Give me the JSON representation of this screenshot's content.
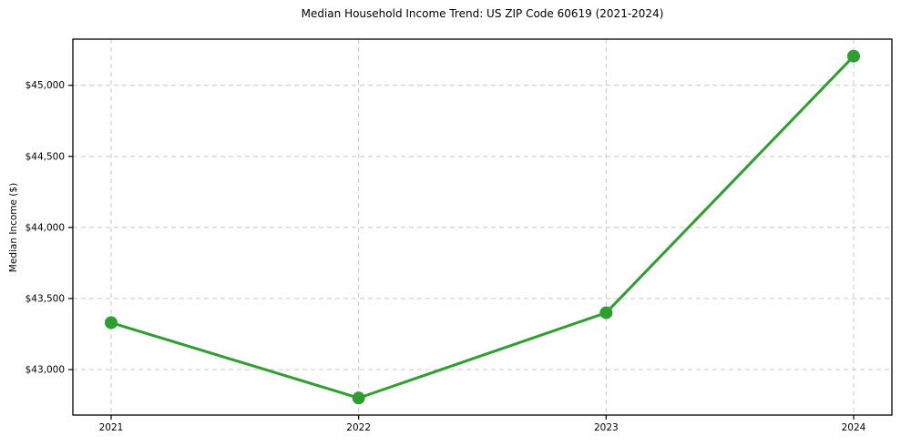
{
  "page": {
    "title": "Median Household Income Trend: US ZIP Code 60619 (2021-2024)"
  },
  "chart_data": {
    "type": "line",
    "title": "Median Household Income Trend: US ZIP Code 60619 (2021-2024)",
    "xlabel": "",
    "ylabel": "Median Income ($)",
    "categories": [
      "2021",
      "2022",
      "2023",
      "2024"
    ],
    "series": [
      {
        "values": [
          43330,
          42800,
          43400,
          45205
        ],
        "color": "#2ca02c",
        "marker": "circle"
      }
    ],
    "yticks": {
      "values": [
        43000,
        43500,
        44000,
        44500,
        45000
      ],
      "labels": [
        "$43,000",
        "$43,500",
        "$44,000",
        "$44,500",
        "$45,000"
      ]
    },
    "ylim": [
      42680,
      45325
    ],
    "grid": true,
    "grid_style": "dashed",
    "legend_position": "none",
    "colors": {
      "line": "#2ca02c",
      "grid": "#c8c8c8",
      "axis": "#000000",
      "background": "#ffffff",
      "text": "#000000"
    }
  }
}
